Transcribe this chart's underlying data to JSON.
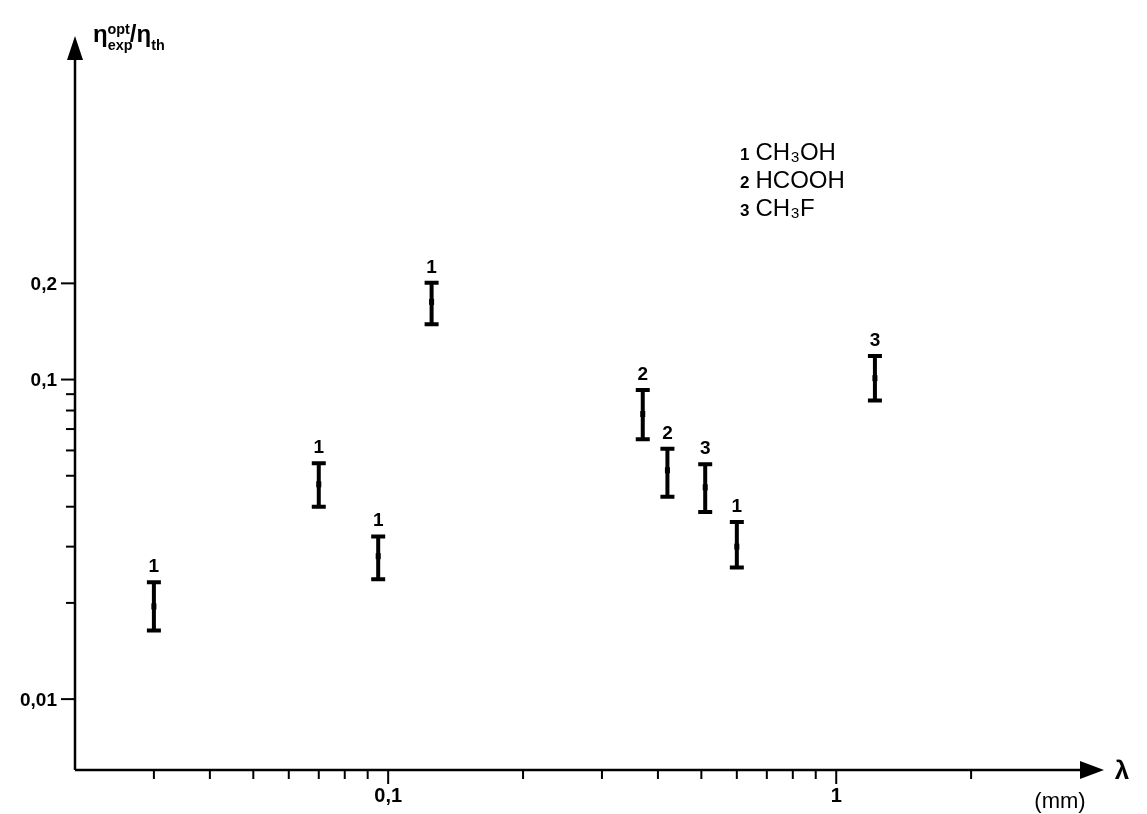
{
  "chart_data": {
    "type": "scatter",
    "xlabel": "λ (mm)",
    "ylabel": "η$_{exp}$$^{opt}$/η$_{th}$",
    "log": "xy",
    "xlim": [
      0.02,
      3.5
    ],
    "ylim": [
      0.006,
      1
    ],
    "xticks": [
      {
        "value": 0.03,
        "label": null
      },
      {
        "value": 0.04,
        "label": null
      },
      {
        "value": 0.05,
        "label": null
      },
      {
        "value": 0.06,
        "label": null
      },
      {
        "value": 0.07,
        "label": null
      },
      {
        "value": 0.08,
        "label": null
      },
      {
        "value": 0.09,
        "label": null
      },
      {
        "value": 0.1,
        "label": "0,1"
      },
      {
        "value": 0.2,
        "label": null
      },
      {
        "value": 0.3,
        "label": null
      },
      {
        "value": 0.4,
        "label": null
      },
      {
        "value": 0.5,
        "label": null
      },
      {
        "value": 0.6,
        "label": null
      },
      {
        "value": 0.7,
        "label": null
      },
      {
        "value": 0.8,
        "label": null
      },
      {
        "value": 0.9,
        "label": null
      },
      {
        "value": 1,
        "label": "1"
      },
      {
        "value": 2,
        "label": null
      }
    ],
    "yticks": [
      {
        "value": 0.01,
        "label": "0,01"
      },
      {
        "value": 0.02,
        "label": null
      },
      {
        "value": 0.03,
        "label": null
      },
      {
        "value": 0.04,
        "label": null
      },
      {
        "value": 0.05,
        "label": null
      },
      {
        "value": 0.06,
        "label": null
      },
      {
        "value": 0.07,
        "label": null
      },
      {
        "value": 0.08,
        "label": null
      },
      {
        "value": 0.09,
        "label": null
      },
      {
        "value": 0.1,
        "label": "0,1"
      },
      {
        "value": 0.2,
        "label": "0,2"
      }
    ],
    "grid": false,
    "series": [
      {
        "color": "#000000",
        "x": [
          0.03,
          0.07,
          0.095,
          0.125,
          0.6
        ],
        "values": [
          0.0195,
          0.047,
          0.028,
          0.175,
          0.03
        ],
        "errors": [
          [
            0.0164,
            0.0232
          ],
          [
            0.04,
            0.0547
          ],
          [
            0.0237,
            0.0323
          ],
          [
            0.149,
            0.201
          ],
          [
            0.0258,
            0.0358
          ]
        ]
      },
      {
        "color": "#000000",
        "x": [
          0.37,
          0.42
        ],
        "values": [
          0.078,
          0.052
        ],
        "errors": [
          [
            0.065,
            0.0928
          ],
          [
            0.043,
            0.0607
          ]
        ]
      },
      {
        "color": "#000000",
        "x": [
          0.51,
          1.22
        ],
        "values": [
          0.046,
          0.101
        ],
        "errors": [
          [
            0.0385,
            0.0543
          ],
          [
            0.086,
            0.1185
          ]
        ]
      }
    ],
    "annotations": [
      {
        "text": "1",
        "x": 0.03,
        "y": 0.0195
      },
      {
        "text": "1",
        "x": 0.07,
        "y": 0.047
      },
      {
        "text": "1",
        "x": 0.095,
        "y": 0.028
      },
      {
        "text": "1",
        "x": 0.125,
        "y": 0.175
      },
      {
        "text": "1",
        "x": 0.6,
        "y": 0.03
      },
      {
        "text": "2",
        "x": 0.42,
        "y": 0.052
      },
      {
        "text": "2",
        "x": 0.37,
        "y": 0.078
      },
      {
        "text": "3",
        "x": 0.51,
        "y": 0.046
      },
      {
        "text": "3",
        "x": 1.22,
        "y": 0.101
      },
      "1 CH₃OH",
      "2 HCOOH",
      "3 CH₃F"
    ]
  }
}
